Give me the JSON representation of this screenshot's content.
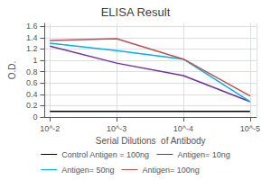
{
  "chart_data": {
    "type": "line",
    "title": "ELISA Result",
    "xlabel": "Serial Dilutions  of Antibody",
    "ylabel": "O.D.",
    "log": "x",
    "x": [
      0.01,
      0.001,
      0.0001,
      1e-05
    ],
    "series": [
      {
        "name": "Control Antigen = 100ng",
        "color": "#000000",
        "values": [
          0.1,
          0.1,
          0.1,
          0.1
        ]
      },
      {
        "name": "Antigen= 10ng",
        "color": "#7030a0",
        "values": [
          1.25,
          0.95,
          0.73,
          0.27
        ]
      },
      {
        "name": "Antigen= 50ng",
        "color": "#00b0f0",
        "values": [
          1.3,
          1.17,
          1.02,
          0.27
        ]
      },
      {
        "name": "Antigen= 100ng",
        "color": "#c0504d",
        "values": [
          1.35,
          1.38,
          1.02,
          0.37
        ]
      }
    ],
    "xlim": [
      0.012,
      8e-06
    ],
    "xticks": [
      {
        "value": 0.01,
        "label": "10^-2"
      },
      {
        "value": 0.001,
        "label": "10^-3"
      },
      {
        "value": 0.0001,
        "label": "10^-4"
      },
      {
        "value": 1e-05,
        "label": "10^-5"
      }
    ],
    "ylim": [
      0,
      1.65
    ],
    "yticks": [
      0,
      0.2,
      0.4,
      0.6,
      0.8,
      1.0,
      1.2,
      1.4,
      1.6
    ],
    "grid": true,
    "legend": "bottom"
  }
}
